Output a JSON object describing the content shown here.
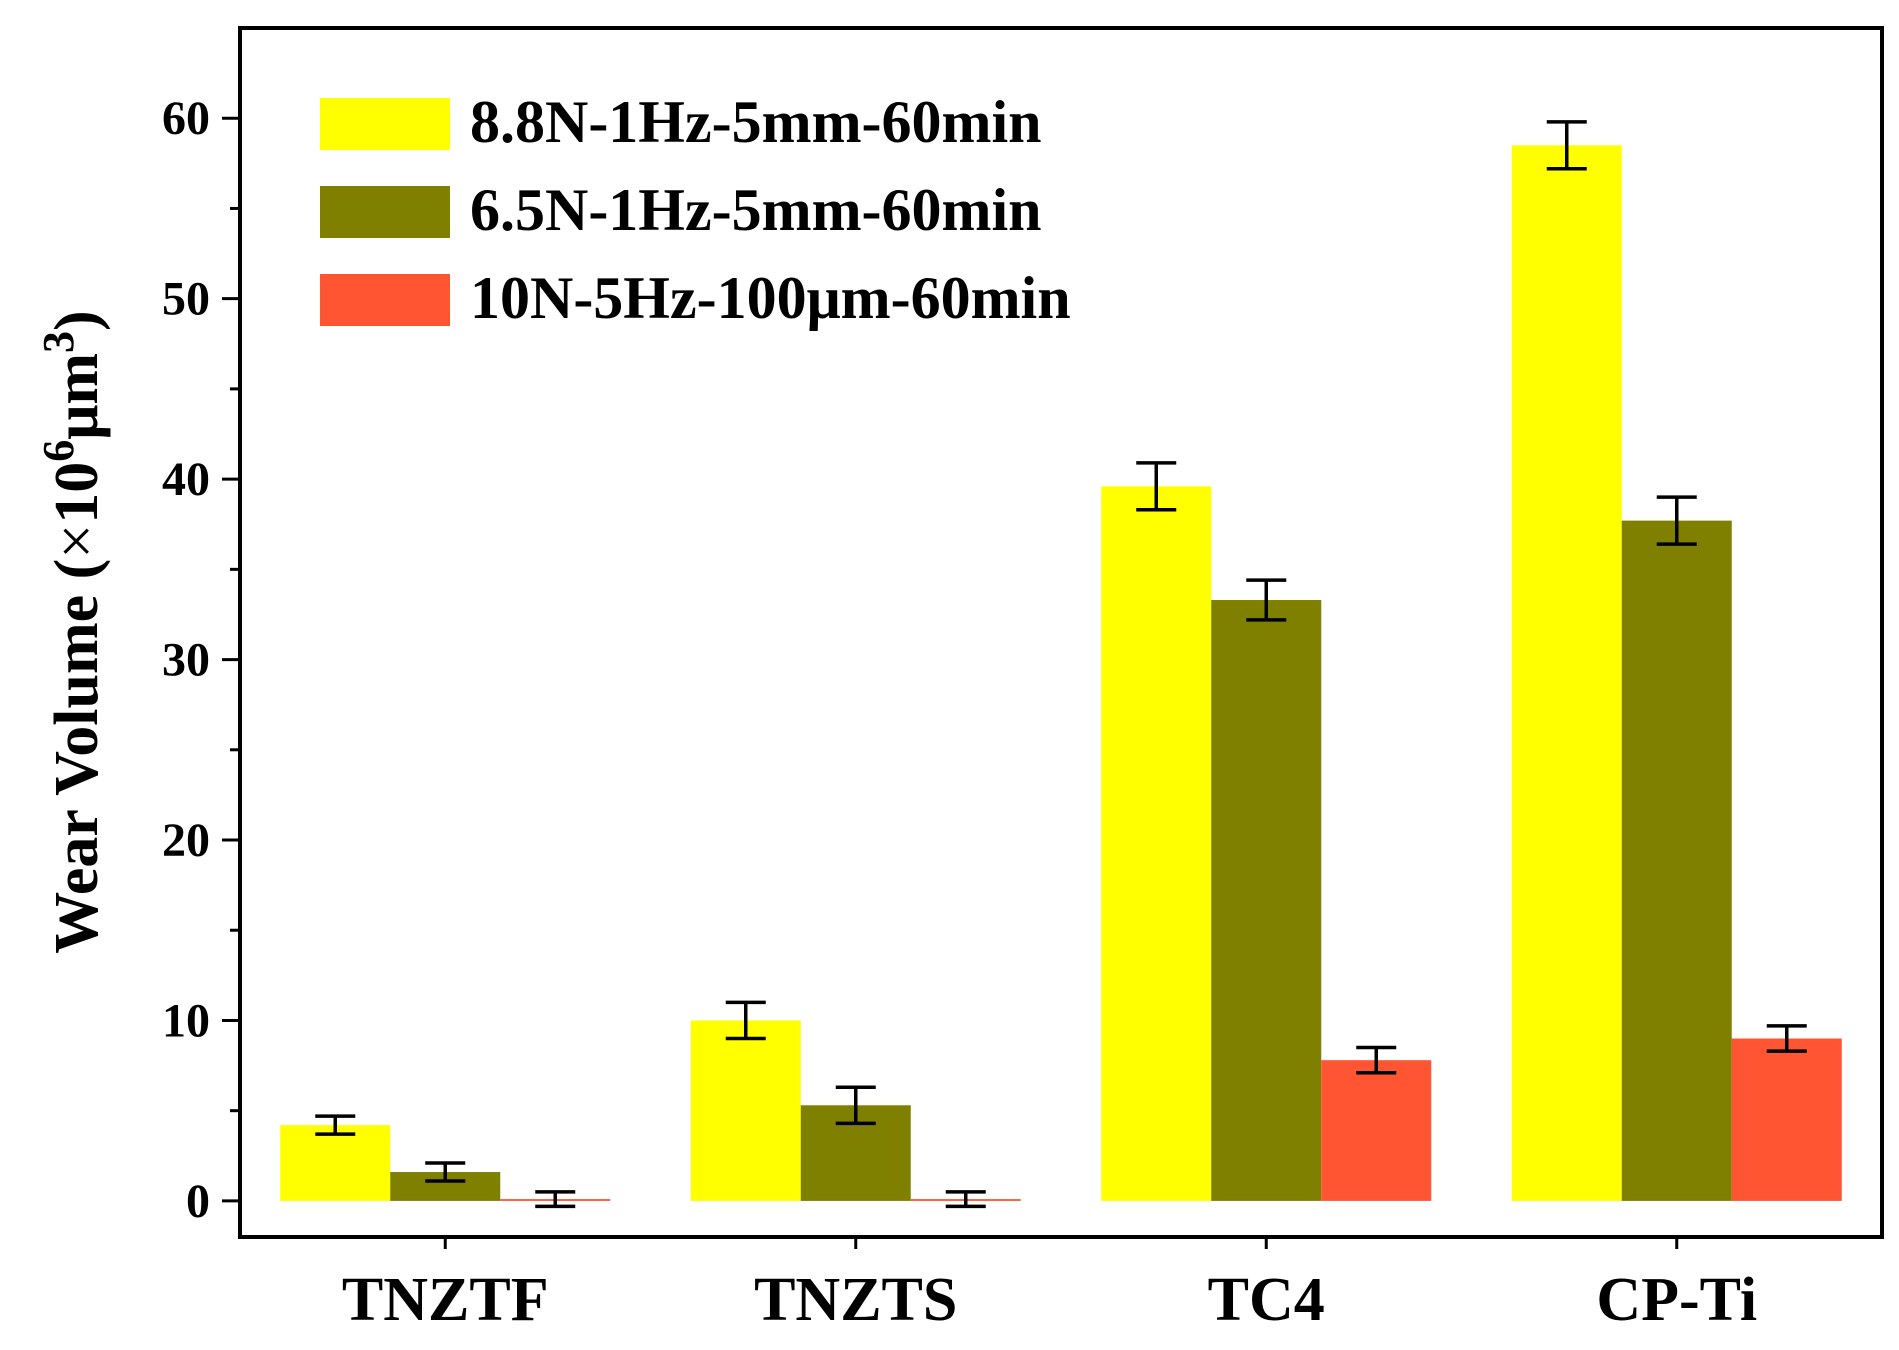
{
  "chart_data": {
    "type": "bar",
    "title": "",
    "xlabel": "",
    "ylabel": {
      "prefix": "Wear Volume (",
      "times": "×",
      "base": "10",
      "exp": "6",
      "unit": "μm",
      "unit_exp": "3",
      "suffix": ")"
    },
    "categories": [
      "TNZTF",
      "TNZTS",
      "TC4",
      "CP-Ti"
    ],
    "ylim": [
      -2,
      65
    ],
    "yticks": [
      0,
      10,
      20,
      30,
      40,
      50,
      60
    ],
    "ytick_labels": [
      "0",
      "10",
      "20",
      "30",
      "40",
      "50",
      "60"
    ],
    "grid": false,
    "legend_position": "top-left",
    "series": [
      {
        "name": "8.8N-1Hz-5mm-60min",
        "color": "#FFFF00",
        "values": [
          4.2,
          10.0,
          39.6,
          58.5
        ],
        "errors": [
          0.5,
          1.0,
          1.3,
          1.3
        ]
      },
      {
        "name": "6.5N-1Hz-5mm-60min",
        "color": "#808000",
        "values": [
          1.6,
          5.3,
          33.3,
          37.7
        ],
        "errors": [
          0.5,
          1.0,
          1.1,
          1.3
        ]
      },
      {
        "name": "10N-5Hz-100μm-60min",
        "color": "#FF5533",
        "values": [
          0.1,
          0.1,
          7.8,
          9.0
        ],
        "errors": [
          0.4,
          0.4,
          0.7,
          0.7
        ]
      }
    ]
  }
}
